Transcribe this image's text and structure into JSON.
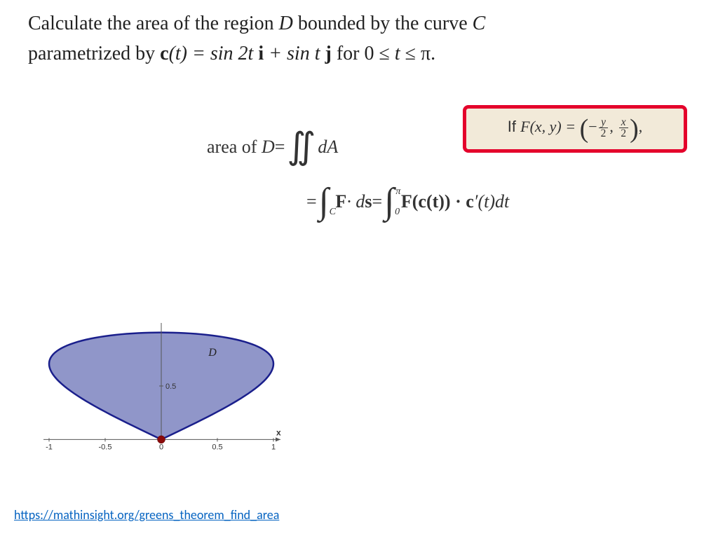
{
  "problem": {
    "line1_pre": "Calculate the area of the region ",
    "line1_D": "D",
    "line1_mid": " bounded by the curve ",
    "line1_C": "C",
    "line2_pre": "parametrized by ",
    "line2_c": "c",
    "line2_t": "(t) = sin 2t",
    "line2_i": " i",
    "line2_plus": " + sin t",
    "line2_j": " j",
    "line2_for": " for 0 ≤ ",
    "line2_tvar": "t",
    "line2_end": " ≤ π."
  },
  "callout": {
    "if": "If ",
    "F": "F",
    "xy": "(x, y) = ",
    "open": "(",
    "neg": "−",
    "y": "y",
    "x": "x",
    "two": "2",
    "comma": ", ",
    "close": ")",
    "trail": ","
  },
  "equations": {
    "area_of": "area of ",
    "D": "D",
    "eq": " = ",
    "dA": " dA",
    "F": "F",
    "dot_ds": " · d",
    "s": "s",
    "ct": "(c(t)) · c",
    "prime_t_dt": "′(t)dt",
    "int_C": "C",
    "int_0": "0",
    "int_pi": "π"
  },
  "diagram": {
    "x_min": -1.0,
    "x_max": 1.0,
    "y_min": -0.05,
    "y_max": 1.05,
    "x_ticks": [
      "-1",
      "-0.5",
      "0",
      "0.5",
      "1"
    ],
    "y_tick_label": "0.5",
    "x_label": "x",
    "region_label": "D",
    "fill_color": "#7d84c0",
    "stroke_color": "#1a1f8c",
    "point_color": "#8b0a0a",
    "axis_color": "#555555",
    "tick_font_size": 11
  },
  "link": "https://mathinsight.org/greens_theorem_find_area"
}
